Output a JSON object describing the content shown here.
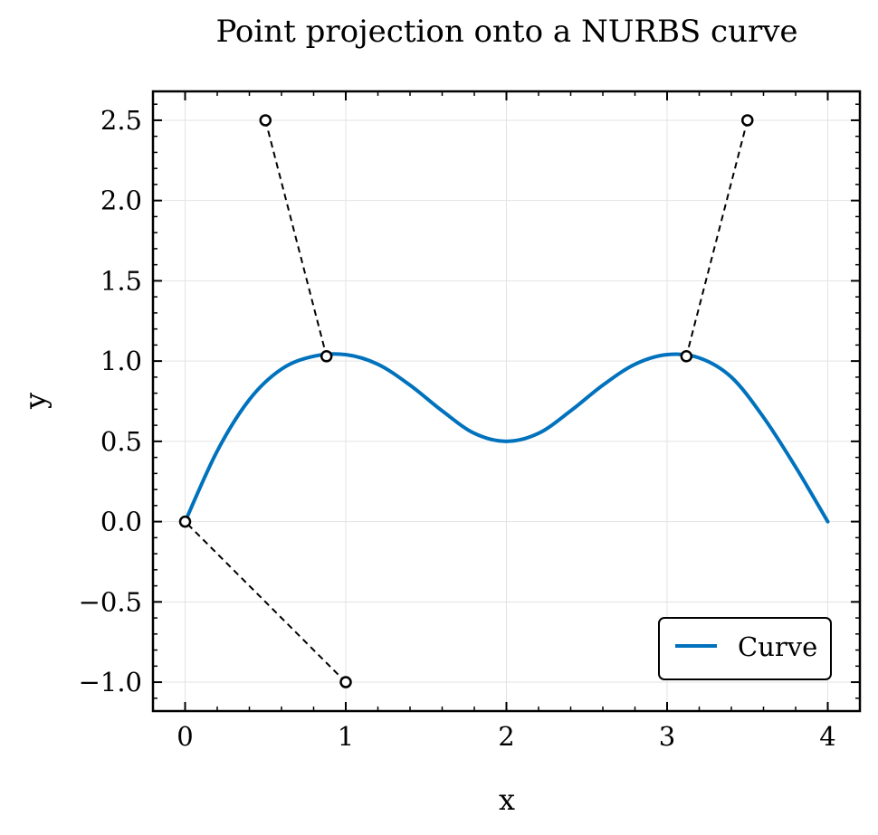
{
  "chart_data": {
    "type": "line",
    "title": "Point projection onto a NURBS curve",
    "xlabel": "x",
    "ylabel": "y",
    "xlim": [
      -0.2,
      4.2
    ],
    "ylim": [
      -1.18,
      2.68
    ],
    "x_ticks": [
      0,
      1,
      2,
      3,
      4
    ],
    "x_tick_labels": [
      "0",
      "1",
      "2",
      "3",
      "4"
    ],
    "y_ticks": [
      -1.0,
      -0.5,
      0.0,
      0.5,
      1.0,
      1.5,
      2.0,
      2.5
    ],
    "y_tick_labels": [
      "−1.0",
      "−0.5",
      "0.0",
      "0.5",
      "1.0",
      "1.5",
      "2.0",
      "2.5"
    ],
    "grid": true,
    "legend_position": "bottom-right",
    "series": [
      {
        "name": "Curve",
        "color": "#0072BD",
        "x": [
          0,
          0.2,
          0.4,
          0.6,
          0.8,
          1.0,
          1.2,
          1.4,
          1.6,
          1.8,
          2.0,
          2.2,
          2.4,
          2.6,
          2.8,
          3.0,
          3.2,
          3.4,
          3.6,
          3.8,
          4.0
        ],
        "y": [
          0.0,
          0.44,
          0.76,
          0.95,
          1.03,
          1.04,
          0.98,
          0.85,
          0.69,
          0.55,
          0.5,
          0.55,
          0.69,
          0.85,
          0.98,
          1.04,
          1.02,
          0.9,
          0.65,
          0.34,
          0.0
        ]
      }
    ],
    "projections": [
      {
        "point": [
          0.5,
          2.5
        ],
        "projected": [
          0.88,
          1.03
        ]
      },
      {
        "point": [
          3.5,
          2.5
        ],
        "projected": [
          3.12,
          1.03
        ]
      },
      {
        "point": [
          1.0,
          -1.0
        ],
        "projected": [
          0.0,
          0.0
        ]
      }
    ]
  }
}
